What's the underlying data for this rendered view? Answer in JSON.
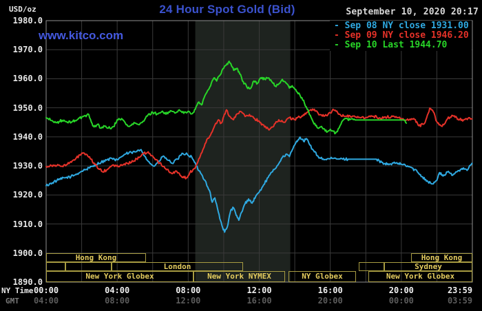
{
  "header": {
    "unit_label": "USD/oz",
    "title": "24 Hour Spot Gold (Bid)",
    "datetime": "September 10, 2020 20:17",
    "watermark": "www.kitco.com"
  },
  "colors": {
    "title_blue": "#3b52ce",
    "watermark_blue": "#4459e0",
    "date_gray": "#d8d8d8",
    "grid": "#3a3a3a",
    "plot_border": "#8f8f8f",
    "nymex_band": "#1e231f",
    "session_border": "#a89c42",
    "session_text": "#e3cb5e",
    "sep08_cyan": "#2fa9e1",
    "sep09_red": "#e63229",
    "sep10_green": "#28d528"
  },
  "legend": {
    "items": [
      {
        "label": "Sep 08 NY close 1931.00",
        "color": "#2fa9e1"
      },
      {
        "label": "Sep 09 NY close 1946.20",
        "color": "#e63229"
      },
      {
        "label": "Sep 10 Last 1944.70",
        "color": "#28d528"
      }
    ]
  },
  "axes": {
    "y_unit": "USD/oz",
    "y_ticks": [
      "1980.0",
      "1970.0",
      "1960.0",
      "1950.0",
      "1940.0",
      "1930.0",
      "1920.0",
      "1910.0",
      "1900.0",
      "1890.0"
    ],
    "x_axis_rows": [
      {
        "name": "NY Time",
        "ticks": [
          "00:00",
          "04:00",
          "08:00",
          "12:00",
          "16:00",
          "20:00",
          "23:59"
        ]
      },
      {
        "name": "GMT",
        "ticks": [
          "04:00",
          "08:00",
          "12:00",
          "16:00",
          "20:00",
          "00:00",
          "03:59"
        ]
      }
    ],
    "x_tick_hours": [
      0,
      4,
      8,
      12,
      16,
      20,
      23.983
    ]
  },
  "sessions": {
    "rows": [
      {
        "boxes": [
          {
            "h1": 0,
            "h2": 5.62,
            "label": "Hong Kong"
          },
          {
            "h1": 20.55,
            "h2": 24,
            "label": "Hong Kong"
          }
        ]
      },
      {
        "boxes": [
          {
            "h1": 0,
            "h2": 1.1,
            "label": ""
          },
          {
            "h1": 1.1,
            "h2": 3.7,
            "label": ""
          },
          {
            "h1": 3.7,
            "h2": 11.1,
            "label": "London"
          },
          {
            "h1": 17.6,
            "h2": 19.05,
            "label": ""
          },
          {
            "h1": 19.05,
            "h2": 24,
            "label": "Sydney"
          }
        ]
      },
      {
        "boxes": [
          {
            "h1": 0,
            "h2": 8.3,
            "label": "New York Globex"
          },
          {
            "h1": 8.3,
            "h2": 13.45,
            "label": "New York NYMEX"
          },
          {
            "h1": 13.65,
            "h2": 17.45,
            "label": "NY Globex"
          },
          {
            "h1": 18.15,
            "h2": 24,
            "label": "New York Globex"
          }
        ]
      }
    ]
  },
  "chart_data": {
    "type": "line",
    "title": "24 Hour Spot Gold (Bid)",
    "xlabel": "NY Time",
    "ylabel": "USD/oz",
    "ylim": [
      1890,
      1980
    ],
    "xlim_hours": [
      0,
      24
    ],
    "grid": true,
    "legend_position": "top-right",
    "nymex_session_shading_hours": [
      8.4,
      13.75
    ],
    "series": [
      {
        "name": "Sep 08 NY close",
        "close": 1931.0,
        "color": "#2fa9e1",
        "points": [
          [
            0,
            1923.2
          ],
          [
            0.35,
            1924.2
          ],
          [
            0.7,
            1925.2
          ],
          [
            1.05,
            1925.9
          ],
          [
            1.4,
            1926.3
          ],
          [
            1.75,
            1927.3
          ],
          [
            2.1,
            1928.5
          ],
          [
            2.45,
            1929.3
          ],
          [
            2.8,
            1930.5
          ],
          [
            3.1,
            1931.3
          ],
          [
            3.4,
            1932
          ],
          [
            3.7,
            1932.6
          ],
          [
            3.9,
            1931.8
          ],
          [
            4.2,
            1933
          ],
          [
            4.5,
            1934.2
          ],
          [
            4.8,
            1934.6
          ],
          [
            5.1,
            1934.9
          ],
          [
            5.35,
            1935.6
          ],
          [
            5.6,
            1933
          ],
          [
            5.85,
            1930.8
          ],
          [
            6.1,
            1929.9
          ],
          [
            6.35,
            1931.6
          ],
          [
            6.6,
            1933.4
          ],
          [
            6.85,
            1932
          ],
          [
            7.1,
            1930.9
          ],
          [
            7.4,
            1932.3
          ],
          [
            7.7,
            1934.3
          ],
          [
            7.95,
            1934
          ],
          [
            8.2,
            1933
          ],
          [
            8.45,
            1930
          ],
          [
            8.7,
            1927.5
          ],
          [
            8.95,
            1925
          ],
          [
            9.2,
            1921.5
          ],
          [
            9.35,
            1917.5
          ],
          [
            9.5,
            1919
          ],
          [
            9.7,
            1914
          ],
          [
            9.9,
            1909.5
          ],
          [
            10.05,
            1907.2
          ],
          [
            10.2,
            1909
          ],
          [
            10.4,
            1914.8
          ],
          [
            10.55,
            1915.6
          ],
          [
            10.7,
            1913
          ],
          [
            10.85,
            1911.3
          ],
          [
            11,
            1914
          ],
          [
            11.2,
            1917
          ],
          [
            11.4,
            1918.6
          ],
          [
            11.6,
            1917.2
          ],
          [
            11.8,
            1919.5
          ],
          [
            12,
            1921
          ],
          [
            12.25,
            1923.5
          ],
          [
            12.5,
            1926
          ],
          [
            12.75,
            1928
          ],
          [
            13,
            1930
          ],
          [
            13.25,
            1932.5
          ],
          [
            13.5,
            1934
          ],
          [
            13.7,
            1933.2
          ],
          [
            13.9,
            1936
          ],
          [
            14.1,
            1938.5
          ],
          [
            14.3,
            1939.9
          ],
          [
            14.5,
            1938.4
          ],
          [
            14.65,
            1939.4
          ],
          [
            14.85,
            1937.2
          ],
          [
            15.1,
            1934.8
          ],
          [
            15.4,
            1932.8
          ],
          [
            15.7,
            1932.2
          ],
          [
            16,
            1932.5
          ],
          [
            16.5,
            1932.4
          ],
          [
            17,
            1932.3
          ],
          [
            18.6,
            1932.3
          ],
          [
            18.9,
            1931.2
          ],
          [
            19.3,
            1930.4
          ],
          [
            19.7,
            1931
          ],
          [
            20.1,
            1930.4
          ],
          [
            20.5,
            1929.6
          ],
          [
            20.9,
            1928
          ],
          [
            21.2,
            1926.2
          ],
          [
            21.5,
            1924.6
          ],
          [
            21.75,
            1923.8
          ],
          [
            22,
            1925
          ],
          [
            22.15,
            1927.7
          ],
          [
            22.35,
            1926.5
          ],
          [
            22.6,
            1927.9
          ],
          [
            22.9,
            1926.8
          ],
          [
            23.2,
            1928.4
          ],
          [
            23.5,
            1929.3
          ],
          [
            23.75,
            1928.8
          ],
          [
            23.98,
            1930.9
          ]
        ]
      },
      {
        "name": "Sep 09 NY close",
        "close": 1946.2,
        "color": "#e63229",
        "points": [
          [
            0,
            1929.8
          ],
          [
            0.4,
            1930.3
          ],
          [
            0.8,
            1929.9
          ],
          [
            1.2,
            1930.6
          ],
          [
            1.6,
            1932
          ],
          [
            1.9,
            1933.8
          ],
          [
            2.1,
            1934.5
          ],
          [
            2.4,
            1933
          ],
          [
            2.7,
            1931
          ],
          [
            3,
            1928.8
          ],
          [
            3.2,
            1927.9
          ],
          [
            3.5,
            1929
          ],
          [
            3.8,
            1930.3
          ],
          [
            4.1,
            1929.7
          ],
          [
            4.4,
            1930.7
          ],
          [
            4.8,
            1931.2
          ],
          [
            5.1,
            1932.4
          ],
          [
            5.4,
            1934
          ],
          [
            5.7,
            1934.6
          ],
          [
            6,
            1933.4
          ],
          [
            6.3,
            1931.4
          ],
          [
            6.6,
            1929.8
          ],
          [
            6.9,
            1928.2
          ],
          [
            7.1,
            1927.3
          ],
          [
            7.3,
            1928.3
          ],
          [
            7.6,
            1926.5
          ],
          [
            7.9,
            1925.9
          ],
          [
            8.1,
            1927.8
          ],
          [
            8.4,
            1929.2
          ],
          [
            8.6,
            1932.5
          ],
          [
            8.9,
            1936.5
          ],
          [
            9.1,
            1939.5
          ],
          [
            9.3,
            1941.3
          ],
          [
            9.5,
            1944
          ],
          [
            9.7,
            1945.9
          ],
          [
            9.85,
            1944.7
          ],
          [
            10,
            1947
          ],
          [
            10.15,
            1949.3
          ],
          [
            10.35,
            1947
          ],
          [
            10.55,
            1945.9
          ],
          [
            10.75,
            1947.9
          ],
          [
            11,
            1948.6
          ],
          [
            11.2,
            1947
          ],
          [
            11.45,
            1947.7
          ],
          [
            11.7,
            1946.4
          ],
          [
            12,
            1945.4
          ],
          [
            12.3,
            1943.4
          ],
          [
            12.6,
            1942.7
          ],
          [
            12.9,
            1944.6
          ],
          [
            13.1,
            1945.9
          ],
          [
            13.4,
            1945
          ],
          [
            13.7,
            1946.6
          ],
          [
            14,
            1946
          ],
          [
            14.4,
            1947.2
          ],
          [
            14.8,
            1949
          ],
          [
            15.1,
            1949.5
          ],
          [
            15.4,
            1947.6
          ],
          [
            15.7,
            1947.3
          ],
          [
            16,
            1948.2
          ],
          [
            16.2,
            1949.3
          ],
          [
            16.5,
            1947.8
          ],
          [
            16.8,
            1947
          ],
          [
            17.1,
            1947.3
          ],
          [
            17.5,
            1946.6
          ],
          [
            18,
            1946.7
          ],
          [
            18.4,
            1947.1
          ],
          [
            18.8,
            1946.5
          ],
          [
            19.2,
            1946.8
          ],
          [
            19.6,
            1947
          ],
          [
            20,
            1946.3
          ],
          [
            20.4,
            1945.7
          ],
          [
            20.7,
            1946.3
          ],
          [
            21,
            1943.8
          ],
          [
            21.3,
            1944.6
          ],
          [
            21.6,
            1949.9
          ],
          [
            21.8,
            1948.6
          ],
          [
            22,
            1945.2
          ],
          [
            22.3,
            1943.6
          ],
          [
            22.6,
            1946.2
          ],
          [
            22.9,
            1947.3
          ],
          [
            23.2,
            1946.1
          ],
          [
            23.5,
            1945.8
          ],
          [
            23.8,
            1946.6
          ],
          [
            23.98,
            1946.2
          ]
        ]
      },
      {
        "name": "Sep 10 Last",
        "close": 1944.7,
        "color": "#28d528",
        "points": [
          [
            0,
            1946.6
          ],
          [
            0.3,
            1945.6
          ],
          [
            0.6,
            1944.9
          ],
          [
            0.9,
            1945.7
          ],
          [
            1.2,
            1944.9
          ],
          [
            1.5,
            1945.3
          ],
          [
            1.8,
            1946.1
          ],
          [
            2.1,
            1947
          ],
          [
            2.4,
            1947.7
          ],
          [
            2.55,
            1945
          ],
          [
            2.7,
            1943.4
          ],
          [
            2.9,
            1944.3
          ],
          [
            3.1,
            1943
          ],
          [
            3.35,
            1943.7
          ],
          [
            3.6,
            1942.9
          ],
          [
            3.8,
            1943.5
          ],
          [
            4,
            1945.9
          ],
          [
            4.25,
            1946.3
          ],
          [
            4.5,
            1944.2
          ],
          [
            4.75,
            1943.9
          ],
          [
            5,
            1944.7
          ],
          [
            5.25,
            1944.2
          ],
          [
            5.5,
            1945.4
          ],
          [
            5.75,
            1947.7
          ],
          [
            6,
            1948.4
          ],
          [
            6.25,
            1947.9
          ],
          [
            6.5,
            1948.6
          ],
          [
            6.75,
            1947.8
          ],
          [
            7,
            1949
          ],
          [
            7.25,
            1948.2
          ],
          [
            7.5,
            1949.3
          ],
          [
            7.75,
            1948.1
          ],
          [
            8,
            1948.8
          ],
          [
            8.2,
            1947.9
          ],
          [
            8.4,
            1949.5
          ],
          [
            8.6,
            1952
          ],
          [
            8.75,
            1951
          ],
          [
            8.9,
            1953.5
          ],
          [
            9.1,
            1956
          ],
          [
            9.3,
            1958.5
          ],
          [
            9.45,
            1960.3
          ],
          [
            9.6,
            1959.2
          ],
          [
            9.75,
            1961
          ],
          [
            9.9,
            1962.8
          ],
          [
            10.1,
            1964.5
          ],
          [
            10.3,
            1966
          ],
          [
            10.45,
            1964.3
          ],
          [
            10.6,
            1963
          ],
          [
            10.75,
            1963.6
          ],
          [
            10.9,
            1961.7
          ],
          [
            11.1,
            1959
          ],
          [
            11.3,
            1957.2
          ],
          [
            11.5,
            1956.6
          ],
          [
            11.7,
            1959.2
          ],
          [
            11.9,
            1958.4
          ],
          [
            12.1,
            1960.4
          ],
          [
            12.3,
            1959.9
          ],
          [
            12.5,
            1960.3
          ],
          [
            12.7,
            1959
          ],
          [
            12.9,
            1957.5
          ],
          [
            13.1,
            1958.2
          ],
          [
            13.3,
            1959.8
          ],
          [
            13.5,
            1958.6
          ],
          [
            13.7,
            1956.8
          ],
          [
            13.85,
            1957.6
          ],
          [
            14.1,
            1955.6
          ],
          [
            14.4,
            1953.5
          ],
          [
            14.7,
            1949.5
          ],
          [
            15,
            1945.6
          ],
          [
            15.3,
            1943
          ],
          [
            15.5,
            1943.6
          ],
          [
            15.8,
            1941.6
          ],
          [
            16,
            1942.6
          ],
          [
            16.3,
            1941.3
          ],
          [
            16.5,
            1943.1
          ],
          [
            16.7,
            1945.6
          ],
          [
            16.9,
            1946.3
          ],
          [
            17.1,
            1945.9
          ],
          [
            17.4,
            1945.8
          ],
          [
            20.2,
            1945.8
          ],
          [
            20.28,
            1944.7
          ]
        ]
      }
    ]
  }
}
